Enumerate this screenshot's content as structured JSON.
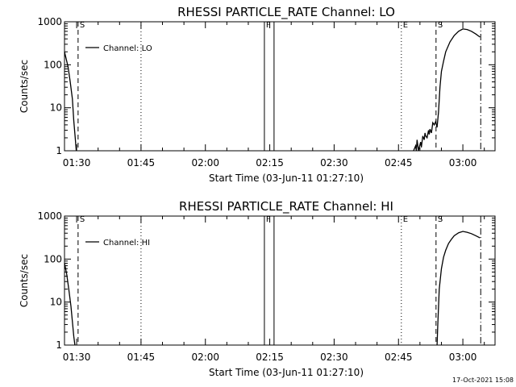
{
  "footer": {
    "timestamp": "17-Oct-2021 15:08"
  },
  "chart_data": [
    {
      "type": "line",
      "title": "RHESSI PARTICLE_RATE Channel: LO",
      "xlabel": "Start Time (03-Jun-11 01:27:10)",
      "ylabel": "Counts/sec",
      "y_scale": "log",
      "ylim": [
        1,
        1000
      ],
      "xlim": [
        "01:27:10",
        "03:07:30"
      ],
      "y_ticks": [
        "1",
        "10",
        "100",
        "1000"
      ],
      "x_ticks": [
        "01:30",
        "01:45",
        "02:00",
        "02:15",
        "02:30",
        "02:45",
        "03:00"
      ],
      "legend": "Channel: LO",
      "flags": [
        {
          "label": "S",
          "time": "01:30:20",
          "style": "dashed"
        },
        {
          "label": "",
          "time": "01:45:00",
          "style": "dotted"
        },
        {
          "label": "F",
          "time": "02:13:45",
          "style": "solid"
        },
        {
          "label": "",
          "time": "02:16:00",
          "style": "solid"
        },
        {
          "label": "E",
          "time": "02:45:40",
          "style": "dotted"
        },
        {
          "label": "S",
          "time": "02:53:45",
          "style": "dashed"
        },
        {
          "label": "",
          "time": "03:04:10",
          "style": "dashdot"
        }
      ],
      "series": [
        {
          "segments": [
            {
              "x": [
                "01:27:10",
                "01:28:00",
                "01:28:30",
                "01:29:00",
                "01:29:20",
                "01:29:40",
                "01:29:55"
              ],
              "y": [
                200,
                90,
                40,
                16,
                5,
                2,
                1
              ]
            },
            {
              "x": [
                "02:48:30",
                "02:49:00",
                "02:49:10",
                "02:49:20",
                "02:49:40",
                "02:50:10",
                "02:50:20",
                "02:50:40",
                "02:51:00",
                "02:51:10",
                "02:51:20",
                "02:51:40",
                "02:52:00",
                "02:52:10",
                "02:52:20",
                "02:52:40",
                "02:53:00",
                "02:53:20",
                "02:53:40",
                "02:54:00",
                "02:54:20",
                "02:54:40",
                "02:55:00",
                "02:55:30",
                "02:56:00",
                "02:57:00",
                "02:58:00",
                "02:59:00",
                "03:00:00",
                "03:01:00",
                "03:02:00",
                "03:03:00",
                "03:04:00"
              ],
              "y": [
                1,
                1.3,
                1,
                1.8,
                1,
                1.6,
                1.2,
                2.2,
                1.8,
                2.6,
                2.2,
                2.0,
                3.0,
                2.4,
                3.2,
                2.6,
                4.5,
                4.0,
                4.8,
                3.5,
                8,
                30,
                70,
                120,
                200,
                340,
                480,
                600,
                680,
                660,
                600,
                520,
                440
              ]
            }
          ]
        }
      ]
    },
    {
      "type": "line",
      "title": "RHESSI PARTICLE_RATE Channel: HI",
      "xlabel": "Start Time (03-Jun-11 01:27:10)",
      "ylabel": "Counts/sec",
      "y_scale": "log",
      "ylim": [
        1,
        1000
      ],
      "xlim": [
        "01:27:10",
        "03:07:30"
      ],
      "y_ticks": [
        "1",
        "10",
        "100",
        "1000"
      ],
      "x_ticks": [
        "01:30",
        "01:45",
        "02:00",
        "02:15",
        "02:30",
        "02:45",
        "03:00"
      ],
      "legend": "Channel: HI",
      "flags": [
        {
          "label": "S",
          "time": "01:30:20",
          "style": "dashed"
        },
        {
          "label": "",
          "time": "01:45:00",
          "style": "dotted"
        },
        {
          "label": "F",
          "time": "02:13:45",
          "style": "solid"
        },
        {
          "label": "",
          "time": "02:16:00",
          "style": "solid"
        },
        {
          "label": "E",
          "time": "02:45:40",
          "style": "dotted"
        },
        {
          "label": "S",
          "time": "02:53:45",
          "style": "dashed"
        },
        {
          "label": "",
          "time": "03:04:10",
          "style": "dashdot"
        }
      ],
      "series": [
        {
          "segments": [
            {
              "x": [
                "01:27:10",
                "01:27:40",
                "01:28:10",
                "01:28:40",
                "01:29:00",
                "01:29:20",
                "01:29:35"
              ],
              "y": [
                80,
                45,
                20,
                8,
                3.5,
                1.6,
                1
              ]
            },
            {
              "x": [
                "02:54:00",
                "02:54:10",
                "02:54:30",
                "02:55:00",
                "02:55:30",
                "02:56:00",
                "02:56:40",
                "02:57:20",
                "02:58:00",
                "02:59:00",
                "03:00:00",
                "03:01:00",
                "03:02:00",
                "03:03:00",
                "03:04:00"
              ],
              "y": [
                1,
                3,
                20,
                60,
                110,
                160,
                230,
                290,
                350,
                410,
                440,
                420,
                390,
                350,
                310
              ]
            }
          ]
        }
      ]
    }
  ]
}
